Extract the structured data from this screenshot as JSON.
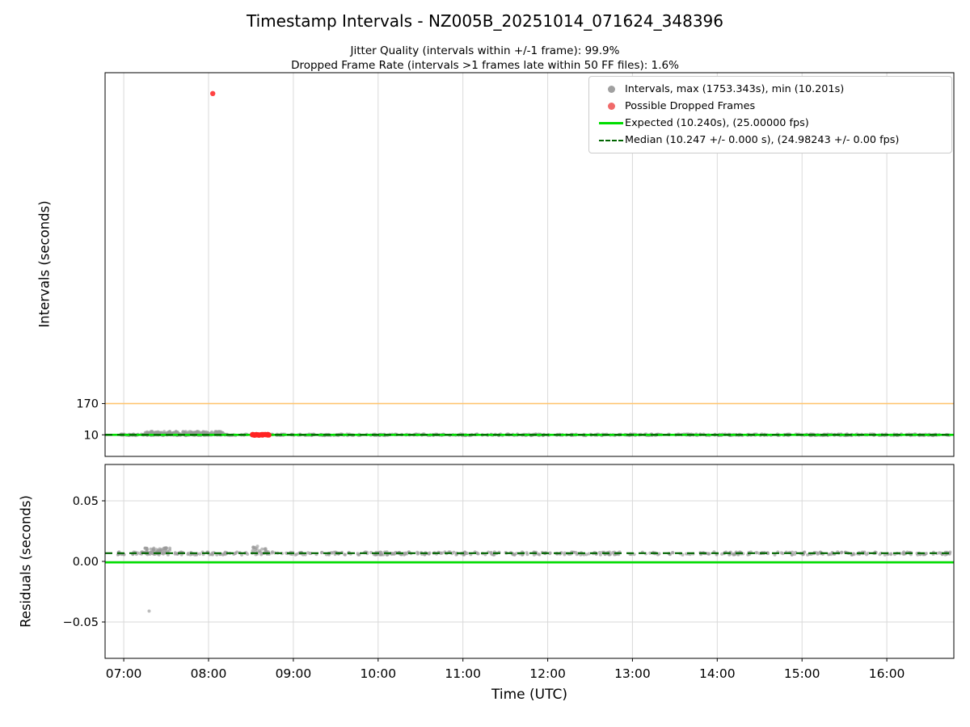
{
  "style": {
    "grid_color": "#d9d9d9",
    "frame_color": "#000000",
    "background": "#ffffff"
  },
  "figure": {
    "title": "Timestamp Intervals - NZ005B_20251014_071624_348396",
    "subtitle1": "Jitter Quality (intervals within +/-1 frame): 99.9%",
    "subtitle2": "Dropped Frame Rate (intervals >1 frames late within 50 FF files): 1.6%",
    "xlabel": "Time (UTC)"
  },
  "chart_data": [
    {
      "type": "scatter",
      "title": "Timestamp intervals vs time",
      "ylabel": "Intervals (seconds)",
      "ylim": [
        -100,
        1860
      ],
      "yticks": [
        {
          "value": 170,
          "label": "170"
        },
        {
          "value": 10,
          "label": "10"
        }
      ],
      "x_hours_lim": [
        6.78,
        16.79
      ],
      "show_xtick_labels": false,
      "grid": true,
      "xticks": [
        {
          "hour": 7,
          "label": "07:00"
        },
        {
          "hour": 8,
          "label": "08:00"
        },
        {
          "hour": 9,
          "label": "09:00"
        },
        {
          "hour": 10,
          "label": "10:00"
        },
        {
          "hour": 11,
          "label": "11:00"
        },
        {
          "hour": 12,
          "label": "12:00"
        },
        {
          "hour": 13,
          "label": "13:00"
        },
        {
          "hour": 14,
          "label": "14:00"
        },
        {
          "hour": 15,
          "label": "15:00"
        },
        {
          "hour": 16,
          "label": "16:00"
        }
      ],
      "stats": {
        "max_interval_s": 1753.343,
        "min_interval_s": 10.201,
        "expected_interval_s": 10.24,
        "expected_fps": "25.00000",
        "median_interval_s": 10.247,
        "median_interval_err_s": "0.000",
        "median_fps": "24.98243",
        "median_fps_err": "0.00",
        "jitter_quality_pct": 99.9,
        "dropped_frame_rate_pct": 1.6
      },
      "legend_position": "upper right",
      "legend": [
        {
          "label": "Intervals, max (1753.343s), min (10.201s)",
          "marker": "dot",
          "color": "#a0a0a0"
        },
        {
          "label": "Possible Dropped Frames",
          "marker": "dot",
          "color": "#f06a6a"
        },
        {
          "label": "Expected (10.240s), (25.00000 fps)",
          "marker": "line",
          "color": "#00dd00"
        },
        {
          "label": "Median (10.247 +/- 0.000 s), (24.98243 +/- 0.00 fps)",
          "marker": "dashed-line",
          "color": "#006400"
        }
      ],
      "lines": [
        {
          "name": "dropped-frame-threshold",
          "y": 170,
          "color": "#ffc570",
          "width": 1.6,
          "style": "solid",
          "zorder": 1
        },
        {
          "name": "expected-interval",
          "y": 10.24,
          "color": "#00dd00",
          "width": 2.6,
          "style": "solid",
          "zorder": 3
        },
        {
          "name": "median-interval",
          "y": 10.247,
          "color": "#006400",
          "width": 2.2,
          "style": "dashed",
          "zorder": 4
        }
      ],
      "series": [
        {
          "name": "Intervals",
          "color": "#9a9a9a",
          "opacity": 0.65,
          "marker_radius": 2.2,
          "zorder": 2,
          "clusters": [
            {
              "x_start": 6.92,
              "x_end": 16.76,
              "y_center": 10.25,
              "y_jitter": 3,
              "count": 520
            },
            {
              "x_start": 7.25,
              "x_end": 8.17,
              "y_center": 18,
              "y_jitter": 9,
              "count": 170
            }
          ],
          "points": []
        },
        {
          "name": "Possible Dropped Frames",
          "color": "#ff2222",
          "opacity": 0.85,
          "marker_radius": 3.2,
          "zorder": 5,
          "clusters": [
            {
              "x_start": 8.5,
              "x_end": 8.72,
              "y_center": 10.3,
              "y_jitter": 2,
              "count": 30
            }
          ],
          "points": [
            [
              8.05,
              1753.343
            ]
          ]
        }
      ]
    },
    {
      "type": "scatter",
      "title": "Residuals vs time",
      "ylabel": "Residuals (seconds)",
      "ylim": [
        -0.08,
        0.08
      ],
      "yticks": [
        {
          "value": 0.05,
          "label": "0.05"
        },
        {
          "value": 0,
          "label": "0.00"
        },
        {
          "value": -0.05,
          "label": "−0.05"
        }
      ],
      "x_hours_lim": [
        6.78,
        16.79
      ],
      "show_xtick_labels": true,
      "grid": true,
      "xticks": [
        {
          "hour": 7,
          "label": "07:00"
        },
        {
          "hour": 8,
          "label": "08:00"
        },
        {
          "hour": 9,
          "label": "09:00"
        },
        {
          "hour": 10,
          "label": "10:00"
        },
        {
          "hour": 11,
          "label": "11:00"
        },
        {
          "hour": 12,
          "label": "12:00"
        },
        {
          "hour": 13,
          "label": "13:00"
        },
        {
          "hour": 14,
          "label": "14:00"
        },
        {
          "hour": 15,
          "label": "15:00"
        },
        {
          "hour": 16,
          "label": "16:00"
        }
      ],
      "lines": [
        {
          "name": "expected-residual-zero",
          "y": -0.0008,
          "color": "#00dd00",
          "width": 2.6,
          "style": "solid",
          "zorder": 2
        },
        {
          "name": "median-residual",
          "y": 0.0068,
          "color": "#006400",
          "width": 2.2,
          "style": "dashed",
          "zorder": 3
        }
      ],
      "series": [
        {
          "name": "Residuals",
          "color": "#9a9a9a",
          "opacity": 0.65,
          "marker_radius": 2.0,
          "zorder": 1,
          "clusters": [
            {
              "x_start": 6.92,
              "x_end": 16.76,
              "y_center": 0.0066,
              "y_jitter": 0.0012,
              "count": 520
            },
            {
              "x_start": 7.25,
              "x_end": 7.55,
              "y_center": 0.0088,
              "y_jitter": 0.0025,
              "count": 50
            },
            {
              "x_start": 8.52,
              "x_end": 8.68,
              "y_center": 0.01,
              "y_jitter": 0.0025,
              "count": 18
            }
          ],
          "points": [
            [
              7.3,
              -0.041
            ]
          ]
        }
      ]
    }
  ]
}
